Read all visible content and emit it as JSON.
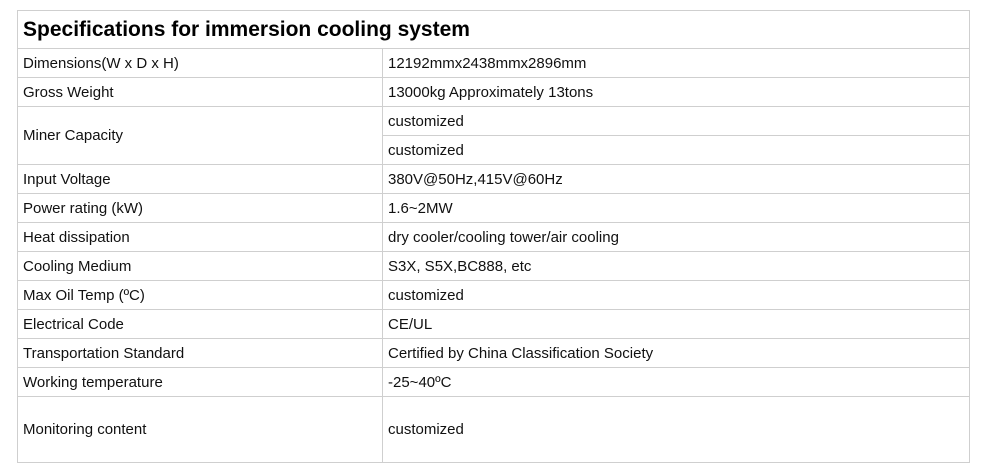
{
  "title": "Specifications for immersion cooling system",
  "rows": [
    {
      "label": "Dimensions(W x D x H)",
      "values": [
        "12192mmx2438mmx2896mm"
      ]
    },
    {
      "label": "Gross Weight",
      "values": [
        "13000kg Approximately 13tons"
      ]
    },
    {
      "label": "Miner Capacity",
      "values": [
        "customized",
        "customized"
      ]
    },
    {
      "label": "Input Voltage",
      "values": [
        "380V@50Hz,415V@60Hz"
      ]
    },
    {
      "label": "Power rating (kW)",
      "values": [
        "1.6~2MW"
      ]
    },
    {
      "label": "Heat dissipation",
      "values": [
        "dry cooler/cooling tower/air cooling"
      ]
    },
    {
      "label": "Cooling Medium",
      "values": [
        "S3X, S5X,BC888, etc"
      ]
    },
    {
      "label": "Max Oil Temp (ºC)",
      "values": [
        "customized"
      ]
    },
    {
      "label": "Electrical Code",
      "values": [
        "CE/UL"
      ]
    },
    {
      "label": "Transportation Standard",
      "values": [
        "Certified by China Classification Society"
      ]
    },
    {
      "label": "Working temperature",
      "values": [
        "-25~40ºC"
      ]
    },
    {
      "label": "Monitoring content",
      "values": [
        "customized"
      ]
    }
  ]
}
